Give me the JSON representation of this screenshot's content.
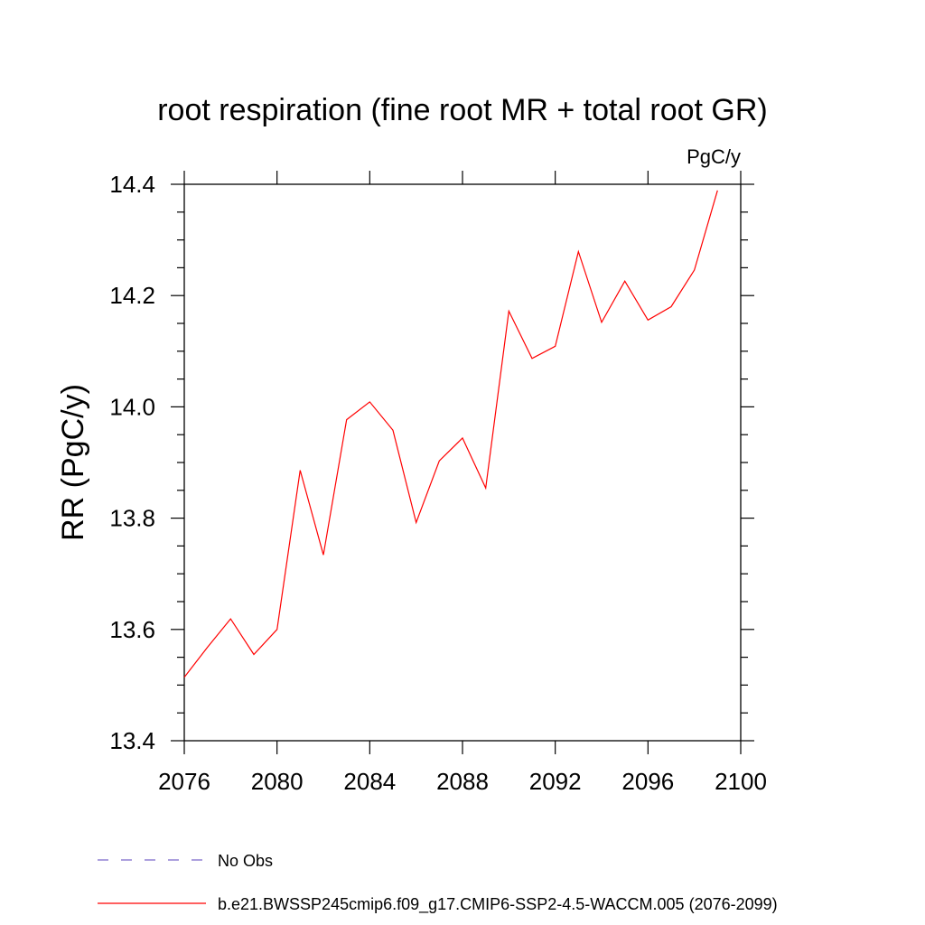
{
  "chart_data": {
    "type": "line",
    "title": "root respiration (fine root MR + total root GR)",
    "units": "PgC/y",
    "ylabel": "RR  (PgC/y)",
    "xlabel": "",
    "xlim": [
      2076,
      2100
    ],
    "ylim": [
      13.4,
      14.4
    ],
    "x_ticks": [
      2076,
      2080,
      2084,
      2088,
      2092,
      2096,
      2100
    ],
    "x_tick_labels": [
      "2076",
      "2080",
      "2084",
      "2088",
      "2092",
      "2096",
      "2100"
    ],
    "y_ticks": [
      13.4,
      13.6,
      13.8,
      14.0,
      14.2,
      14.4
    ],
    "y_tick_labels": [
      "13.4",
      "13.6",
      "13.8",
      "14.0",
      "14.2",
      "14.4"
    ],
    "grid": false,
    "legend_position": "bottom",
    "series": [
      {
        "name": "b.e21.BWSSP245cmip6.f09_g17.CMIP6-SSP2-4.5-WACCM.005 (2076-2099)",
        "color": "#ff0000",
        "dash": "solid",
        "x": [
          2076,
          2077,
          2078,
          2079,
          2080,
          2081,
          2082,
          2083,
          2084,
          2085,
          2086,
          2087,
          2088,
          2089,
          2090,
          2091,
          2092,
          2093,
          2094,
          2095,
          2096,
          2097,
          2098,
          2099
        ],
        "y": [
          13.514,
          13.568,
          13.619,
          13.555,
          13.6,
          13.886,
          13.734,
          13.977,
          14.009,
          13.958,
          13.792,
          13.903,
          13.944,
          13.854,
          14.172,
          14.087,
          14.109,
          14.279,
          14.152,
          14.226,
          14.156,
          14.18,
          14.246,
          14.389
        ]
      }
    ],
    "legend": [
      {
        "label": "No Obs",
        "color": "#7b68c9",
        "dash": "dashed"
      },
      {
        "label": "b.e21.BWSSP245cmip6.f09_g17.CMIP6-SSP2-4.5-WACCM.005 (2076-2099)",
        "color": "#ff0000",
        "dash": "solid"
      }
    ]
  }
}
